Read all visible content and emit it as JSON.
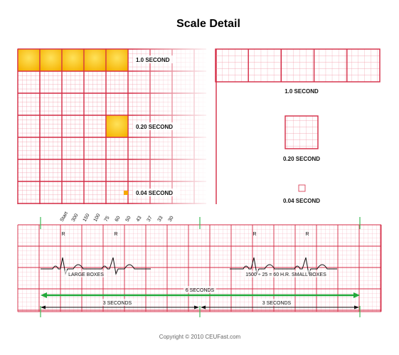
{
  "title": "Scale Detail",
  "colors": {
    "grid_major": "#d42a44",
    "grid_minor": "#f08fa0",
    "highlight": "#fcd01c",
    "highlight_dark": "#f6a800",
    "green_arrow": "#22a83a",
    "green_tick": "#3dbb57"
  },
  "top_left": {
    "label_1s": "1.0 SECOND",
    "label_020": "0.20 SECOND",
    "label_004": "0.04 SECOND"
  },
  "top_right": {
    "label_1s": "1.0 SECOND",
    "label_020": "0.20 SECOND",
    "label_004": "0.04 SECOND"
  },
  "strip": {
    "rate_labels": [
      "Start",
      "300",
      "150",
      "100",
      "75",
      "60",
      "50",
      "43",
      "37",
      "33",
      "30"
    ],
    "r_label": "R",
    "large_boxes_label": "LARGE BOXES",
    "small_boxes_label": "1500 ÷ 25 = 60 H.R. SMALL BOXES",
    "six_seconds": "6 SECONDS",
    "three_seconds": "3 SECONDS"
  },
  "copyright": "Copyright © 2010 CEUFast.com"
}
